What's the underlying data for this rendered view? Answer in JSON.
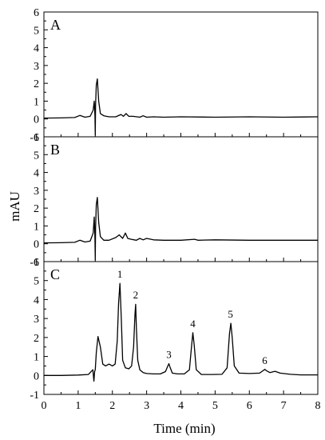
{
  "chart_data": {
    "type": "line",
    "xlabel": "Time (min)",
    "ylabel": "mAU",
    "xlim": [
      0,
      8
    ],
    "xticks": [
      0,
      1,
      2,
      3,
      4,
      5,
      6,
      7,
      8
    ],
    "colors": {
      "line": "#000000",
      "axis": "#000000"
    },
    "grid": false,
    "panels": [
      {
        "label": "A",
        "ylim": [
          -1,
          6
        ],
        "yticks": [
          -1,
          0,
          1,
          2,
          3,
          4,
          5,
          6
        ],
        "peak_labels": [],
        "series": [
          {
            "x": [
              0,
              0.5,
              0.9,
              1.05,
              1.2,
              1.35,
              1.44,
              1.47,
              1.49,
              1.5,
              1.51,
              1.53,
              1.56,
              1.6,
              1.65,
              1.75,
              1.9,
              2.1,
              2.25,
              2.32,
              2.4,
              2.48,
              2.6,
              2.8,
              2.9,
              3.0,
              3.2,
              3.5,
              4.0,
              5.0,
              6.0,
              7.0,
              8.0
            ],
            "y": [
              0.05,
              0.06,
              0.08,
              0.2,
              0.1,
              0.15,
              0.5,
              1.0,
              0.2,
              -0.9,
              0.8,
              1.9,
              2.25,
              1.0,
              0.3,
              0.18,
              0.12,
              0.12,
              0.25,
              0.15,
              0.3,
              0.15,
              0.15,
              0.1,
              0.18,
              0.1,
              0.12,
              0.1,
              0.12,
              0.1,
              0.12,
              0.1,
              0.12
            ]
          }
        ]
      },
      {
        "label": "B",
        "ylim": [
          -1,
          6
        ],
        "yticks": [
          -1,
          0,
          1,
          2,
          3,
          4,
          5,
          6
        ],
        "peak_labels": [],
        "series": [
          {
            "x": [
              0,
              0.5,
              0.9,
              1.05,
              1.2,
              1.35,
              1.44,
              1.47,
              1.49,
              1.5,
              1.51,
              1.53,
              1.56,
              1.6,
              1.65,
              1.75,
              1.9,
              2.1,
              2.2,
              2.3,
              2.38,
              2.45,
              2.55,
              2.7,
              2.8,
              2.9,
              3.0,
              3.2,
              3.5,
              4.0,
              4.4,
              4.5,
              5.0,
              6.0,
              7.0,
              8.0
            ],
            "y": [
              0.05,
              0.06,
              0.08,
              0.2,
              0.1,
              0.15,
              0.6,
              1.5,
              0.3,
              -0.9,
              0.9,
              2.2,
              2.6,
              1.2,
              0.4,
              0.2,
              0.2,
              0.35,
              0.5,
              0.3,
              0.6,
              0.3,
              0.25,
              0.2,
              0.3,
              0.22,
              0.3,
              0.22,
              0.2,
              0.2,
              0.25,
              0.2,
              0.22,
              0.2,
              0.2,
              0.2
            ]
          }
        ]
      },
      {
        "label": "C",
        "ylim": [
          -1,
          6
        ],
        "yticks": [
          -1,
          0,
          1,
          2,
          3,
          4,
          5,
          6
        ],
        "peak_labels": [
          {
            "text": "1",
            "x": 2.22,
            "y": 5.15
          },
          {
            "text": "2",
            "x": 2.68,
            "y": 4.05
          },
          {
            "text": "3",
            "x": 3.65,
            "y": 0.92
          },
          {
            "text": "4",
            "x": 4.35,
            "y": 2.55
          },
          {
            "text": "5",
            "x": 5.45,
            "y": 3.05
          },
          {
            "text": "6",
            "x": 6.45,
            "y": 0.6
          }
        ],
        "series": [
          {
            "x": [
              0,
              0.5,
              1.0,
              1.3,
              1.43,
              1.46,
              1.48,
              1.5,
              1.53,
              1.58,
              1.65,
              1.72,
              1.8,
              1.9,
              2.0,
              2.08,
              2.14,
              2.18,
              2.22,
              2.26,
              2.3,
              2.38,
              2.48,
              2.56,
              2.62,
              2.66,
              2.68,
              2.7,
              2.74,
              2.8,
              2.9,
              3.0,
              3.2,
              3.4,
              3.55,
              3.62,
              3.65,
              3.68,
              3.75,
              3.9,
              4.1,
              4.25,
              4.31,
              4.35,
              4.39,
              4.45,
              4.6,
              4.9,
              5.2,
              5.35,
              5.42,
              5.46,
              5.5,
              5.56,
              5.7,
              6.0,
              6.3,
              6.4,
              6.45,
              6.5,
              6.6,
              6.75,
              6.9,
              7.2,
              7.5,
              8.0
            ],
            "y": [
              0.0,
              0.0,
              0.02,
              0.05,
              0.3,
              -0.3,
              0.2,
              0.3,
              1.2,
              2.05,
              1.5,
              0.6,
              0.5,
              0.6,
              0.5,
              0.6,
              1.8,
              3.8,
              4.85,
              3.0,
              0.8,
              0.4,
              0.35,
              0.5,
              1.5,
              3.2,
              3.75,
              2.5,
              0.8,
              0.3,
              0.15,
              0.1,
              0.08,
              0.08,
              0.2,
              0.5,
              0.62,
              0.45,
              0.12,
              0.08,
              0.08,
              0.3,
              1.5,
              2.25,
              1.6,
              0.3,
              0.05,
              0.05,
              0.06,
              0.4,
              2.2,
              2.75,
              2.0,
              0.5,
              0.12,
              0.1,
              0.12,
              0.25,
              0.32,
              0.25,
              0.15,
              0.22,
              0.12,
              0.06,
              0.03,
              0.03
            ]
          }
        ]
      }
    ]
  }
}
